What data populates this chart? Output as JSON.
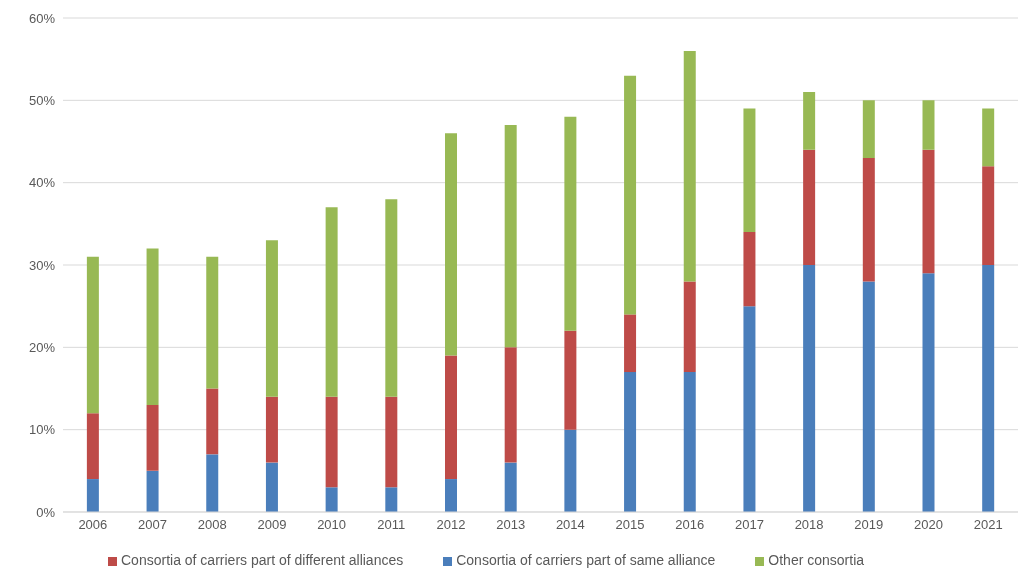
{
  "chart_data": {
    "type": "bar",
    "stacked": true,
    "categories": [
      "2006",
      "2007",
      "2008",
      "2009",
      "2010",
      "2011",
      "2012",
      "2013",
      "2014",
      "2015",
      "2016",
      "2017",
      "2018",
      "2019",
      "2020",
      "2021"
    ],
    "series": [
      {
        "name": "Consortia of carriers part of same alliance",
        "color": "#4a7ebb",
        "values": [
          4,
          5,
          7,
          6,
          3,
          3,
          4,
          6,
          10,
          17,
          17,
          25,
          30,
          28,
          29,
          30
        ]
      },
      {
        "name": "Consortia of carriers part of different alliances",
        "color": "#be4b48",
        "values": [
          8,
          8,
          8,
          8,
          11,
          11,
          15,
          14,
          12,
          7,
          11,
          9,
          14,
          15,
          15,
          12
        ]
      },
      {
        "name": "Other consortia",
        "color": "#98b954",
        "values": [
          19,
          19,
          16,
          19,
          23,
          24,
          27,
          27,
          26,
          29,
          28,
          15,
          7,
          7,
          6,
          7
        ]
      }
    ],
    "ylim": [
      0,
      60
    ],
    "yticks": [
      {
        "value": 0,
        "label": "0%"
      },
      {
        "value": 10,
        "label": "10%"
      },
      {
        "value": 20,
        "label": "20%"
      },
      {
        "value": 30,
        "label": "30%"
      },
      {
        "value": 40,
        "label": "40%"
      },
      {
        "value": 50,
        "label": "50%"
      },
      {
        "value": 60,
        "label": "60%"
      }
    ],
    "grid": "y",
    "legend": "bottom"
  }
}
